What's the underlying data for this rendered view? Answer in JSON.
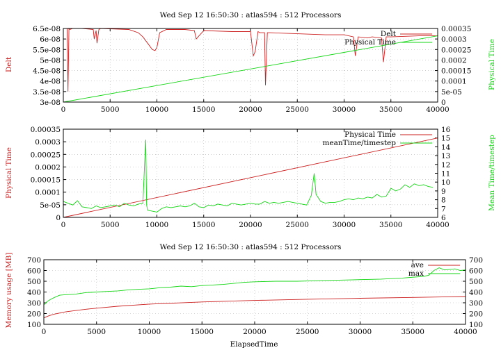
{
  "colors": {
    "red": "#cc1f1f",
    "green": "#12d612",
    "axis": "#000000",
    "grid": "#b0b0b0"
  },
  "chart_data": [
    {
      "type": "line",
      "title": "Wed Sep 12 16:50:30 : atlas594 : 512 Processors",
      "ylabel": "Delt",
      "y2label": "Physical Time",
      "xlim": [
        0,
        40000
      ],
      "ylim": [
        3e-08,
        6.5e-08
      ],
      "y2lim": [
        0,
        0.00035
      ],
      "xticks": [
        "0",
        "5000",
        "10000",
        "15000",
        "20000",
        "25000",
        "30000",
        "35000",
        "40000"
      ],
      "yticks": [
        "3e-08",
        "3.5e-08",
        "4e-08",
        "4.5e-08",
        "5e-08",
        "5.5e-08",
        "6e-08",
        "6.5e-08"
      ],
      "y2ticks": [
        "0",
        "5e-05",
        "0.0001",
        "0.00015",
        "0.0002",
        "0.00025",
        "0.0003",
        "0.00035"
      ],
      "grid": true,
      "legend_position": "top-right",
      "series": [
        {
          "name": "Delt",
          "axis": "y",
          "color": "red",
          "x": [
            0,
            400,
            500,
            600,
            700,
            1000,
            2000,
            3200,
            3300,
            3500,
            3600,
            3800,
            4000,
            5000,
            7000,
            8000,
            8500,
            9000,
            9500,
            9800,
            10000,
            10300,
            11000,
            13000,
            14000,
            14200,
            15000,
            18000,
            20000,
            20300,
            20500,
            20800,
            21000,
            21500,
            21600,
            21800,
            22000,
            25000,
            28000,
            30000,
            31000,
            31200,
            31500,
            32500,
            33000,
            34000,
            34200,
            34500,
            35000,
            38000,
            40000
          ],
          "y": [
            6.5e-08,
            6.5e-08,
            3.5e-08,
            6.5e-08,
            6.45e-08,
            6.5e-08,
            6.5e-08,
            6.45e-08,
            6e-08,
            6.4e-08,
            5.8e-08,
            6.45e-08,
            6.5e-08,
            6.48e-08,
            6.45e-08,
            6.3e-08,
            6.1e-08,
            5.8e-08,
            5.5e-08,
            5.45e-08,
            5.6e-08,
            6.3e-08,
            6.45e-08,
            6.45e-08,
            6.4e-08,
            6e-08,
            6.4e-08,
            6.35e-08,
            6.35e-08,
            5.2e-08,
            5.4e-08,
            6.35e-08,
            6.3e-08,
            6.3e-08,
            3.8e-08,
            6.3e-08,
            6.3e-08,
            6.25e-08,
            6.2e-08,
            6.2e-08,
            6.1e-08,
            5.2e-08,
            6.1e-08,
            6.05e-08,
            6.1e-08,
            6.05e-08,
            4.9e-08,
            6.1e-08,
            6.1e-08,
            6.15e-08,
            6.15e-08
          ]
        },
        {
          "name": "Physical Time",
          "axis": "y2",
          "color": "green",
          "x": [
            0,
            40000
          ],
          "y": [
            0,
            0.000315
          ]
        }
      ]
    },
    {
      "type": "line",
      "title": "",
      "ylabel": "Physical Time",
      "y2label": "Mean Time/timestep",
      "xlim": [
        0,
        40000
      ],
      "ylim": [
        0,
        0.00035
      ],
      "y2lim": [
        6,
        16
      ],
      "xticks": [
        "0",
        "5000",
        "10000",
        "15000",
        "20000",
        "25000",
        "30000",
        "35000",
        "40000"
      ],
      "yticks": [
        "0",
        "5e-05",
        "0.0001",
        "0.00015",
        "0.0002",
        "0.00025",
        "0.0003",
        "0.00035"
      ],
      "y2ticks": [
        "6",
        "7",
        "8",
        "9",
        "10",
        "11",
        "12",
        "13",
        "14",
        "15",
        "16"
      ],
      "grid": true,
      "legend_position": "top-right",
      "series": [
        {
          "name": "Physical Time",
          "axis": "y",
          "color": "red",
          "x": [
            0,
            40000
          ],
          "y": [
            0,
            0.000315
          ]
        },
        {
          "name": "meanTime/timestep",
          "axis": "y2",
          "color": "green",
          "x": [
            0,
            500,
            1000,
            1500,
            2000,
            2500,
            3000,
            3500,
            4000,
            4500,
            5000,
            5500,
            6000,
            6500,
            7000,
            7500,
            8000,
            8500,
            8800,
            8900,
            9000,
            9500,
            10000,
            10500,
            11000,
            11500,
            12000,
            12500,
            13000,
            13500,
            14000,
            14500,
            15000,
            15500,
            16000,
            16500,
            17000,
            17500,
            18000,
            18500,
            19000,
            19500,
            20000,
            20500,
            21000,
            21500,
            22000,
            22500,
            23000,
            23500,
            24000,
            24500,
            25000,
            25500,
            26000,
            26500,
            26800,
            27000,
            27500,
            28000,
            28500,
            29000,
            29500,
            30000,
            30500,
            31000,
            31500,
            32000,
            32500,
            33000,
            33500,
            34000,
            34500,
            35000,
            35500,
            36000,
            36500,
            37000,
            37500,
            38000,
            38500,
            39000,
            39500
          ],
          "y": [
            7.8,
            7.6,
            7.4,
            7.9,
            7.2,
            7.1,
            7.0,
            7.3,
            7.1,
            7.2,
            7.3,
            7.4,
            7.2,
            7.6,
            7.4,
            7.3,
            7.5,
            7.6,
            14.8,
            7.4,
            6.8,
            6.7,
            6.6,
            7.0,
            7.2,
            7.1,
            7.2,
            7.3,
            7.2,
            7.3,
            7.6,
            7.2,
            7.1,
            7.4,
            7.3,
            7.5,
            7.4,
            7.3,
            7.6,
            7.5,
            7.4,
            7.5,
            7.6,
            7.5,
            7.5,
            7.8,
            7.6,
            7.7,
            7.6,
            7.7,
            7.8,
            7.7,
            7.6,
            7.5,
            7.4,
            8.5,
            11.0,
            8.6,
            7.8,
            7.6,
            7.7,
            7.7,
            7.8,
            8.0,
            8.1,
            8.0,
            8.2,
            8.1,
            8.3,
            8.2,
            8.6,
            8.3,
            8.4,
            9.3,
            9.0,
            9.2,
            9.7,
            9.4,
            9.8,
            9.6,
            9.7,
            9.5,
            9.4
          ]
        }
      ]
    },
    {
      "type": "line",
      "title": "Wed Sep 12 16:50:30 : atlas594 : 512 Processors",
      "xlabel": "ElapsedTime",
      "ylabel": "Memory usage [MB]",
      "xlim": [
        0,
        40000
      ],
      "ylim": [
        100,
        700
      ],
      "y2lim": [
        100,
        700
      ],
      "xticks": [
        "0",
        "5000",
        "10000",
        "15000",
        "20000",
        "25000",
        "30000",
        "35000",
        "40000"
      ],
      "yticks": [
        "100",
        "200",
        "300",
        "400",
        "500",
        "600",
        "700"
      ],
      "y2ticks": [
        "100",
        "200",
        "300",
        "400",
        "500",
        "600",
        "700"
      ],
      "grid": true,
      "legend_position": "top-right",
      "series": [
        {
          "name": "ave",
          "axis": "y",
          "color": "red",
          "x": [
            0,
            500,
            1000,
            2000,
            3000,
            4000,
            5000,
            7000,
            10000,
            15000,
            20000,
            25000,
            30000,
            35000,
            40000
          ],
          "y": [
            160,
            180,
            195,
            215,
            228,
            240,
            250,
            268,
            288,
            308,
            322,
            333,
            342,
            350,
            358
          ]
        },
        {
          "name": "max",
          "axis": "y",
          "color": "green",
          "x": [
            0,
            300,
            600,
            1000,
            1500,
            2000,
            3000,
            4000,
            5000,
            6000,
            7000,
            8000,
            9000,
            10000,
            11000,
            12000,
            13000,
            14000,
            15000,
            16000,
            17000,
            18000,
            19000,
            20000,
            22000,
            24000,
            26000,
            28000,
            30000,
            32000,
            34000,
            36000,
            36500,
            37000,
            37500,
            38000,
            39000,
            39500,
            40000
          ],
          "y": [
            280,
            310,
            330,
            350,
            370,
            375,
            380,
            395,
            400,
            405,
            410,
            420,
            425,
            430,
            440,
            445,
            455,
            450,
            460,
            465,
            470,
            480,
            490,
            495,
            500,
            500,
            505,
            510,
            515,
            520,
            530,
            545,
            555,
            600,
            625,
            605,
            615,
            600,
            605
          ]
        }
      ]
    }
  ]
}
